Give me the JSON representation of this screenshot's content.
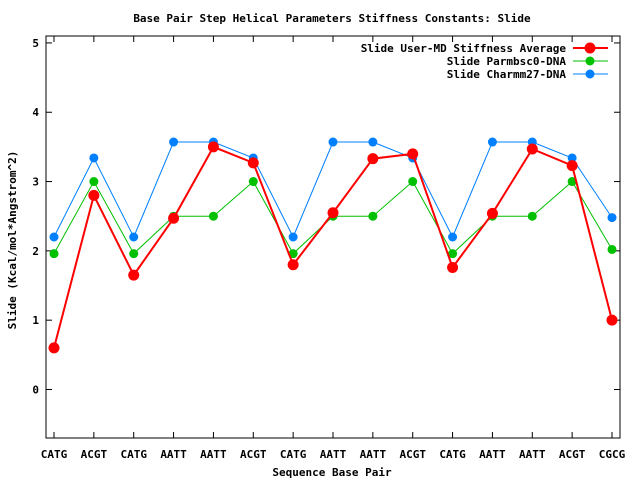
{
  "chart_data": {
    "type": "line",
    "title": "Base Pair Step Helical Parameters Stiffness Constants: Slide",
    "xlabel": "Sequence Base Pair",
    "ylabel": "Slide (Kcal/mol*Angstrom^2)",
    "ylim": [
      -0.7,
      5.1
    ],
    "yticks": [
      0,
      1,
      2,
      3,
      4,
      5
    ],
    "grid": false,
    "legend_position": "top-right",
    "categories": [
      "CATG",
      "ACGT",
      "CATG",
      "AATT",
      "AATT",
      "ACGT",
      "CATG",
      "AATT",
      "AATT",
      "ACGT",
      "CATG",
      "AATT",
      "AATT",
      "ACGT",
      "CGCG"
    ],
    "series": [
      {
        "name": "Slide User-MD Stiffness Average",
        "color": "#ff0000",
        "values": [
          0.6,
          2.8,
          1.65,
          2.47,
          3.5,
          3.27,
          1.8,
          2.55,
          3.33,
          3.4,
          1.76,
          2.54,
          3.47,
          3.23,
          1.0
        ]
      },
      {
        "name": "Slide Parmbsc0-DNA",
        "color": "#00c000",
        "values": [
          1.96,
          3.0,
          1.96,
          2.5,
          2.5,
          3.0,
          1.96,
          2.5,
          2.5,
          3.0,
          1.96,
          2.5,
          2.5,
          3.0,
          2.02
        ]
      },
      {
        "name": "Slide Charmm27-DNA",
        "color": "#0080ff",
        "values": [
          2.2,
          3.34,
          2.2,
          3.57,
          3.57,
          3.34,
          2.2,
          3.57,
          3.57,
          3.34,
          2.2,
          3.57,
          3.57,
          3.34,
          2.48
        ]
      }
    ]
  }
}
